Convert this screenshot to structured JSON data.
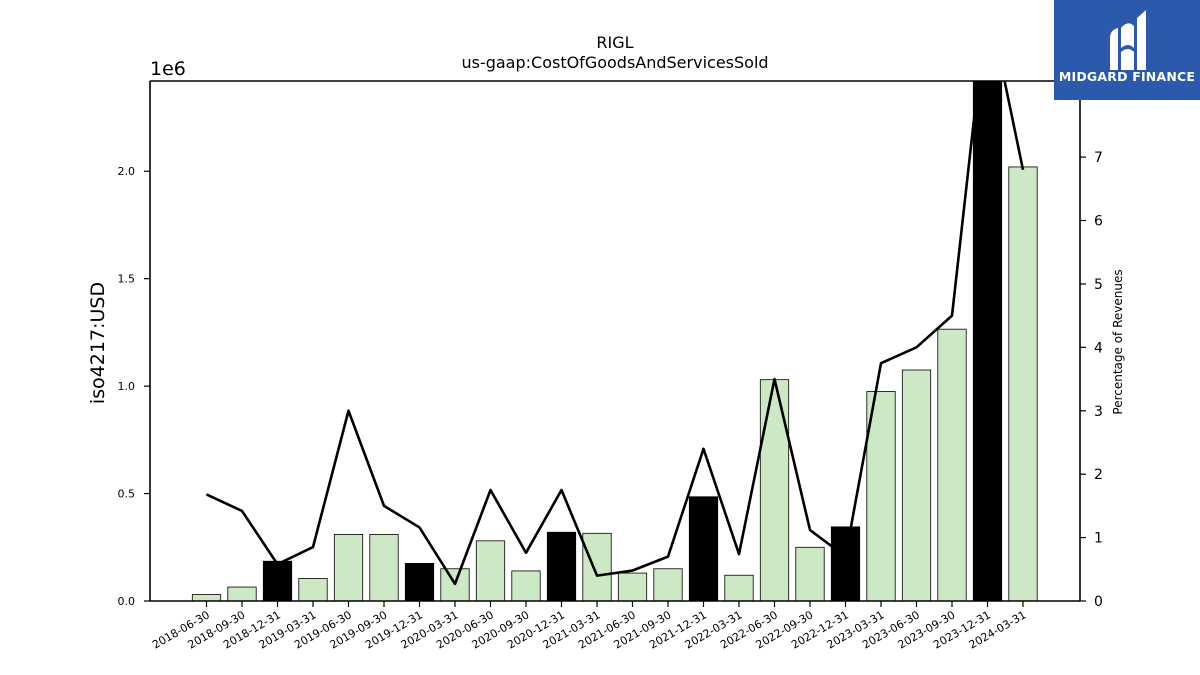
{
  "chart_data": {
    "type": "bar",
    "title": "RIGL",
    "subtitle": "us-gaap:CostOfGoodsAndServicesSold",
    "ylabel": "iso4217:USD",
    "y_offset_label": "1e6",
    "y2label": "Percentage of Revenues",
    "ylim": [
      0,
      2420000
    ],
    "y2lim": [
      0,
      8.2
    ],
    "yticks": [
      "0.0",
      "0.5",
      "1.0",
      "1.5",
      "2.0"
    ],
    "y2ticks": [
      "0",
      "1",
      "2",
      "3",
      "4",
      "5",
      "6",
      "7"
    ],
    "categories": [
      "2018-06-30",
      "2018-09-30",
      "2018-12-31",
      "2019-03-31",
      "2019-06-30",
      "2019-09-30",
      "2019-12-31",
      "2020-03-31",
      "2020-06-30",
      "2020-09-30",
      "2020-12-31",
      "2021-03-31",
      "2021-06-30",
      "2021-09-30",
      "2021-12-31",
      "2022-03-31",
      "2022-06-30",
      "2022-09-30",
      "2022-12-31",
      "2023-03-31",
      "2023-06-30",
      "2023-09-30",
      "2023-12-31",
      "2024-03-31"
    ],
    "values": [
      30000,
      65000,
      185000,
      105000,
      310000,
      310000,
      175000,
      150000,
      280000,
      140000,
      320000,
      315000,
      130000,
      150000,
      485000,
      120000,
      1030000,
      250000,
      345000,
      975000,
      1075000,
      1265000,
      2420000,
      2020000
    ],
    "annual": [
      false,
      false,
      true,
      false,
      false,
      false,
      true,
      false,
      false,
      false,
      true,
      false,
      false,
      false,
      true,
      false,
      false,
      false,
      true,
      false,
      false,
      false,
      true,
      false
    ],
    "percentage_series": [
      1.68,
      1.42,
      0.58,
      0.85,
      3.0,
      1.5,
      1.16,
      0.27,
      1.75,
      0.76,
      1.75,
      0.4,
      0.48,
      0.7,
      2.4,
      0.74,
      3.5,
      1.12,
      0.7,
      3.75,
      4.0,
      4.5,
      9.5,
      6.8
    ],
    "colors": {
      "quarter_bar": "#cde8c4",
      "annual_bar": "#000000",
      "line": "#000000"
    },
    "grid": false
  },
  "logo": {
    "text": "MIDGARD FINANCE",
    "bg": "#2b5aad"
  }
}
